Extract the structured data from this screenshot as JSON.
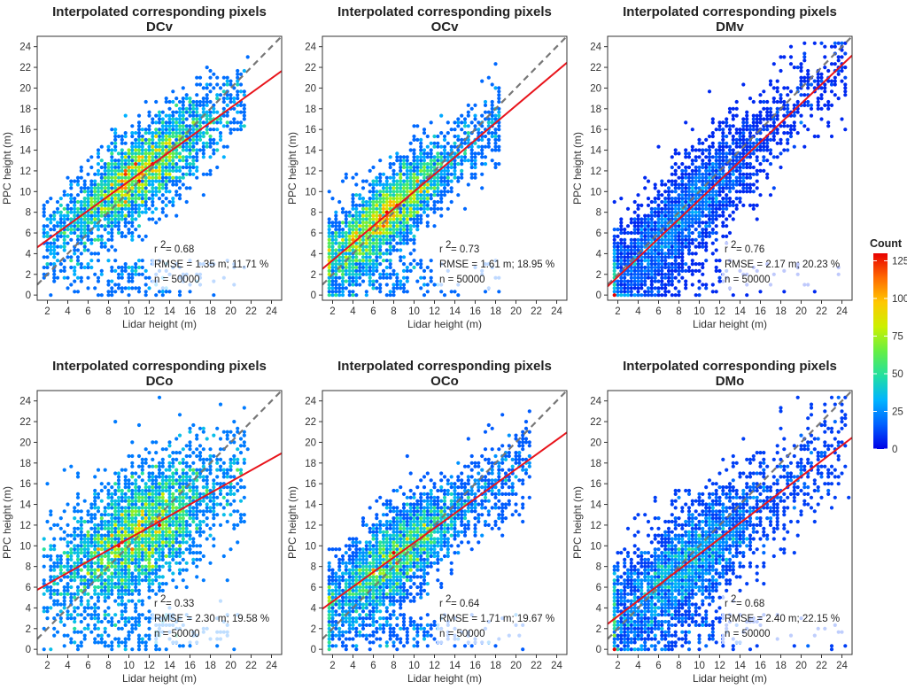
{
  "chart_data": [
    {
      "type": "scatter",
      "title": "Interpolated corresponding pixels",
      "subtitle": "DCv",
      "xlabel": "Lidar height (m)",
      "ylabel": "PPC height (m)",
      "xlim": [
        1,
        25
      ],
      "ylim": [
        -0.5,
        25
      ],
      "xticks": [
        2,
        4,
        6,
        8,
        10,
        12,
        14,
        16,
        18,
        20,
        22,
        24
      ],
      "yticks": [
        0,
        2,
        4,
        6,
        8,
        10,
        12,
        14,
        16,
        18,
        20,
        22,
        24
      ],
      "grid": false,
      "fit_line": {
        "slope": 0.71,
        "intercept": 3.9,
        "color": "#e8141b"
      },
      "one_to_one_line": {
        "style": "dashed",
        "color": "#777777"
      },
      "density_center": [
        11,
        11.6
      ],
      "x_range": [
        1.8,
        21.5
      ],
      "spread": 2.1,
      "stats": {
        "r2_label": "r",
        "r2_value": "= 0.68",
        "rmse": "RMSE = 1.35 m; 11.71 %",
        "n": "n = 50000"
      }
    },
    {
      "type": "scatter",
      "title": "Interpolated corresponding pixels",
      "subtitle": "OCv",
      "xlabel": "Lidar height (m)",
      "ylabel": "PPC height (m)",
      "xlim": [
        1,
        25
      ],
      "ylim": [
        -0.5,
        25
      ],
      "xticks": [
        2,
        4,
        6,
        8,
        10,
        12,
        14,
        16,
        18,
        20,
        22,
        24
      ],
      "yticks": [
        0,
        2,
        4,
        6,
        8,
        10,
        12,
        14,
        16,
        18,
        20,
        22,
        24
      ],
      "grid": false,
      "fit_line": {
        "slope": 0.83,
        "intercept": 1.7,
        "color": "#e8141b"
      },
      "one_to_one_line": {
        "style": "dashed",
        "color": "#777777"
      },
      "density_center": [
        7,
        7.5
      ],
      "x_range": [
        1.8,
        18.5
      ],
      "spread": 2.0,
      "stats": {
        "r2_label": "r",
        "r2_value": "= 0.73",
        "rmse": "RMSE = 1.61 m; 18.95 %",
        "n": "n = 50000"
      }
    },
    {
      "type": "scatter",
      "title": "Interpolated corresponding pixels",
      "subtitle": "DMv",
      "xlabel": "Lidar height (m)",
      "ylabel": "PPC height (m)",
      "xlim": [
        1,
        25
      ],
      "ylim": [
        -0.5,
        25
      ],
      "xticks": [
        2,
        4,
        6,
        8,
        10,
        12,
        14,
        16,
        18,
        20,
        22,
        24
      ],
      "yticks": [
        0,
        2,
        4,
        6,
        8,
        10,
        12,
        14,
        16,
        18,
        20,
        22,
        24
      ],
      "grid": false,
      "fit_line": {
        "slope": 0.93,
        "intercept": -0.1,
        "color": "#e8141b"
      },
      "one_to_one_line": {
        "style": "dashed",
        "color": "#777777"
      },
      "density_center": [
        8,
        7.5
      ],
      "x_range": [
        1.8,
        24.5
      ],
      "spread": 2.5,
      "stats": {
        "r2_label": "r",
        "r2_value": "= 0.76",
        "rmse": "RMSE = 2.17 m; 20.23 %",
        "n": "n = 50000"
      }
    },
    {
      "type": "scatter",
      "title": "Interpolated corresponding pixels",
      "subtitle": "DCo",
      "xlabel": "Lidar height (m)",
      "ylabel": "PPC height (m)",
      "xlim": [
        1,
        25
      ],
      "ylim": [
        -0.5,
        25
      ],
      "xticks": [
        2,
        4,
        6,
        8,
        10,
        12,
        14,
        16,
        18,
        20,
        22,
        24
      ],
      "yticks": [
        0,
        2,
        4,
        6,
        8,
        10,
        12,
        14,
        16,
        18,
        20,
        22,
        24
      ],
      "grid": false,
      "fit_line": {
        "slope": 0.55,
        "intercept": 5.2,
        "color": "#e8141b"
      },
      "one_to_one_line": {
        "style": "dashed",
        "color": "#777777"
      },
      "density_center": [
        11,
        11.2
      ],
      "x_range": [
        1.8,
        21.5
      ],
      "spread": 3.2,
      "stats": {
        "r2_label": "r",
        "r2_value": "= 0.33",
        "rmse": "RMSE = 2.30 m; 19.58 %",
        "n": "n = 50000"
      }
    },
    {
      "type": "scatter",
      "title": "Interpolated corresponding pixels",
      "subtitle": "OCo",
      "xlabel": "Lidar height (m)",
      "ylabel": "PPC height (m)",
      "xlim": [
        1,
        25
      ],
      "ylim": [
        -0.5,
        25
      ],
      "xticks": [
        2,
        4,
        6,
        8,
        10,
        12,
        14,
        16,
        18,
        20,
        22,
        24
      ],
      "yticks": [
        0,
        2,
        4,
        6,
        8,
        10,
        12,
        14,
        16,
        18,
        20,
        22,
        24
      ],
      "grid": false,
      "fit_line": {
        "slope": 0.71,
        "intercept": 3.2,
        "color": "#e8141b"
      },
      "one_to_one_line": {
        "style": "dashed",
        "color": "#777777"
      },
      "density_center": [
        8,
        8.8
      ],
      "x_range": [
        1.8,
        21.5
      ],
      "spread": 2.3,
      "stats": {
        "r2_label": "r",
        "r2_value": "= 0.64",
        "rmse": "RMSE = 1.71 m; 19.67 %",
        "n": "n = 50000"
      }
    },
    {
      "type": "scatter",
      "title": "Interpolated corresponding pixels",
      "subtitle": "DMo",
      "xlabel": "Lidar height (m)",
      "ylabel": "PPC height (m)",
      "xlim": [
        1,
        25
      ],
      "ylim": [
        -0.5,
        25
      ],
      "xticks": [
        2,
        4,
        6,
        8,
        10,
        12,
        14,
        16,
        18,
        20,
        22,
        24
      ],
      "yticks": [
        0,
        2,
        4,
        6,
        8,
        10,
        12,
        14,
        16,
        18,
        20,
        22,
        24
      ],
      "grid": false,
      "fit_line": {
        "slope": 0.75,
        "intercept": 1.7,
        "color": "#e8141b"
      },
      "one_to_one_line": {
        "style": "dashed",
        "color": "#777777"
      },
      "density_center": [
        8,
        7.3
      ],
      "x_range": [
        1.8,
        24.5
      ],
      "spread": 2.8,
      "stats": {
        "r2_label": "r",
        "r2_value": "= 0.68",
        "rmse": "RMSE = 2.40 m; 22.15 %",
        "n": "n = 50000"
      }
    }
  ],
  "legend": {
    "title": "Count",
    "ticks": [
      0,
      25,
      50,
      75,
      100,
      125
    ],
    "range": [
      0,
      130
    ],
    "placement": "right",
    "colors": [
      "#0000e6",
      "#0060ff",
      "#00b4ff",
      "#22e0a0",
      "#66ef44",
      "#ccf000",
      "#ffc800",
      "#ff6a00",
      "#e80000"
    ]
  }
}
